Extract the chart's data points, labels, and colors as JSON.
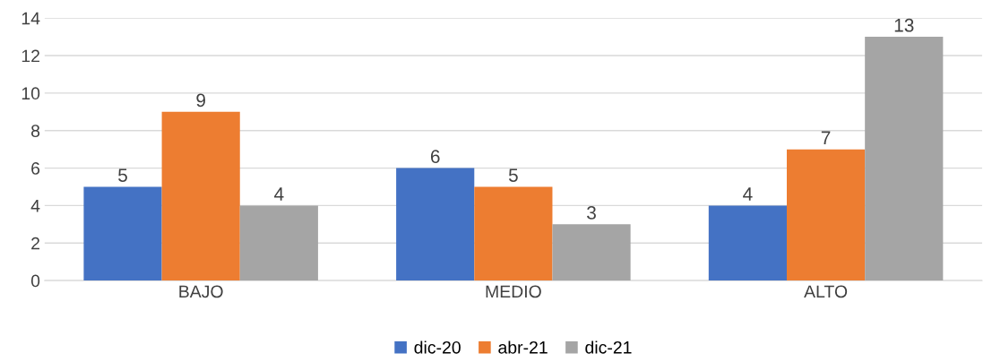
{
  "chart_data": {
    "type": "bar",
    "categories": [
      "BAJO",
      "MEDIO",
      "ALTO"
    ],
    "series": [
      {
        "name": "dic-20",
        "color": "#4472c4",
        "values": [
          5,
          6,
          4
        ]
      },
      {
        "name": "abr-21",
        "color": "#ed7d31",
        "values": [
          9,
          5,
          7
        ]
      },
      {
        "name": "dic-21",
        "color": "#a5a5a5",
        "values": [
          4,
          3,
          13
        ]
      }
    ],
    "ylim": [
      0,
      14
    ],
    "yticks": [
      0,
      2,
      4,
      6,
      8,
      10,
      12,
      14
    ],
    "grid": "y",
    "legend": "bottom",
    "data_labels": true
  }
}
